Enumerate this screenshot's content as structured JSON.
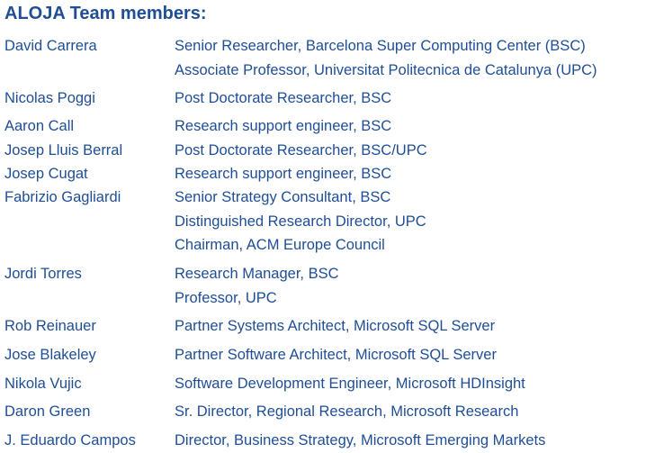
{
  "title": "ALOJA Team members:",
  "members": [
    {
      "name": "David Carrera",
      "roles": [
        "Senior Researcher, Barcelona Super Computing Center (BSC)",
        "Associate Professor, Universitat Politecnica de Catalunya (UPC)"
      ]
    },
    {
      "name": "Nicolas Poggi",
      "roles": [
        "Post Doctorate Researcher, BSC"
      ]
    },
    {
      "name": "Aaron Call",
      "roles": [
        "Research support engineer, BSC"
      ]
    },
    {
      "name": "Josep Lluis Berral",
      "roles": [
        "Post Doctorate Researcher, BSC/UPC"
      ]
    },
    {
      "name": "Josep Cugat",
      "roles": [
        "Research support engineer, BSC"
      ]
    },
    {
      "name": "Fabrizio Gagliardi",
      "roles": [
        "Senior Strategy Consultant, BSC",
        "Distinguished Research Director, UPC",
        "Chairman, ACM Europe Council"
      ]
    },
    {
      "name": "Jordi Torres",
      "roles": [
        "Research Manager, BSC",
        "Professor, UPC"
      ]
    },
    {
      "name": "Rob Reinauer",
      "roles": [
        "Partner Systems Architect, Microsoft SQL Server"
      ]
    },
    {
      "name": "Jose Blakeley",
      "roles": [
        "Partner Software Architect, Microsoft SQL Server"
      ]
    },
    {
      "name": "Nikola Vujic",
      "roles": [
        "Software Development Engineer, Microsoft HDInsight"
      ]
    },
    {
      "name": "Daron Green",
      "roles": [
        "Sr. Director, Regional Research, Microsoft Research"
      ]
    },
    {
      "name": "J. Eduardo Campos",
      "roles": [
        "Director, Business Strategy, Microsoft Emerging Markets"
      ]
    }
  ]
}
